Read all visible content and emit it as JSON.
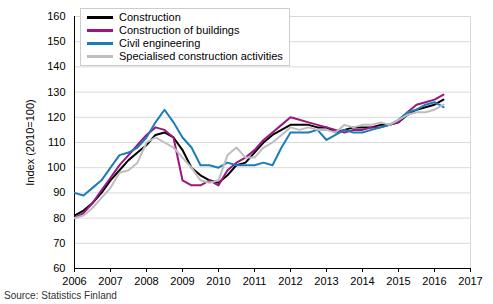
{
  "chart_data": {
    "type": "line",
    "ylabel": "Index (2010=100)",
    "source": "Source: Statistics Finland",
    "x": [
      2006,
      2006.25,
      2006.5,
      2006.75,
      2007,
      2007.25,
      2007.5,
      2007.75,
      2008,
      2008.25,
      2008.5,
      2008.75,
      2009,
      2009.25,
      2009.5,
      2009.75,
      2010,
      2010.25,
      2010.5,
      2010.75,
      2011,
      2011.25,
      2011.5,
      2011.75,
      2012,
      2012.25,
      2012.5,
      2012.75,
      2013,
      2013.25,
      2013.5,
      2013.75,
      2014,
      2014.25,
      2014.5,
      2014.75,
      2015,
      2015.25,
      2015.5,
      2015.75,
      2016,
      2016.25
    ],
    "series": [
      {
        "name": "Construction",
        "color": "#000000",
        "values": [
          81,
          83,
          86,
          90,
          95,
          99,
          103,
          106,
          109,
          113,
          114,
          112,
          107,
          100,
          97,
          95,
          94,
          97,
          101,
          102,
          106,
          110,
          113,
          115,
          117,
          117,
          117,
          116,
          116,
          114,
          115,
          116,
          116,
          116,
          117,
          117,
          118,
          121,
          123,
          124,
          125,
          127
        ]
      },
      {
        "name": "Construction of buildings",
        "color": "#9b1680",
        "values": [
          80,
          82,
          86,
          91,
          96,
          101,
          105,
          109,
          113,
          116,
          115,
          112,
          95,
          93,
          93,
          95,
          93,
          99,
          102,
          104,
          107,
          111,
          114,
          117,
          120,
          119,
          118,
          117,
          116,
          115,
          114,
          115,
          115,
          116,
          116,
          117,
          118,
          122,
          125,
          126,
          127,
          129
        ]
      },
      {
        "name": "Civil engineering",
        "color": "#1b7db8",
        "values": [
          90,
          89,
          92,
          95,
          100,
          105,
          106,
          108,
          112,
          118,
          123,
          118,
          112,
          108,
          101,
          101,
          100,
          102,
          101,
          101,
          101,
          102,
          101,
          108,
          114,
          114,
          114,
          115,
          111,
          113,
          115,
          114,
          114,
          115,
          116,
          117,
          119,
          122,
          123,
          125,
          126,
          124
        ]
      },
      {
        "name": "Specialised construction activities",
        "color": "#bdbdbd",
        "values": [
          80,
          81,
          84,
          88,
          92,
          98,
          99,
          102,
          110,
          112,
          110,
          108,
          104,
          100,
          95,
          94,
          95,
          105,
          108,
          104,
          104,
          108,
          110,
          113,
          116,
          115,
          116,
          115,
          115,
          114,
          117,
          116,
          117,
          117,
          118,
          117,
          119,
          121,
          122,
          122,
          123,
          125
        ]
      }
    ],
    "xlim": [
      2006,
      2017
    ],
    "xticks": [
      2006,
      2007,
      2008,
      2009,
      2010,
      2011,
      2012,
      2013,
      2014,
      2015,
      2016,
      2017
    ],
    "ylim": [
      60,
      160
    ],
    "yticks": [
      60,
      70,
      80,
      90,
      100,
      110,
      120,
      130,
      140,
      150,
      160
    ],
    "grid": true,
    "legend": "upper left"
  }
}
